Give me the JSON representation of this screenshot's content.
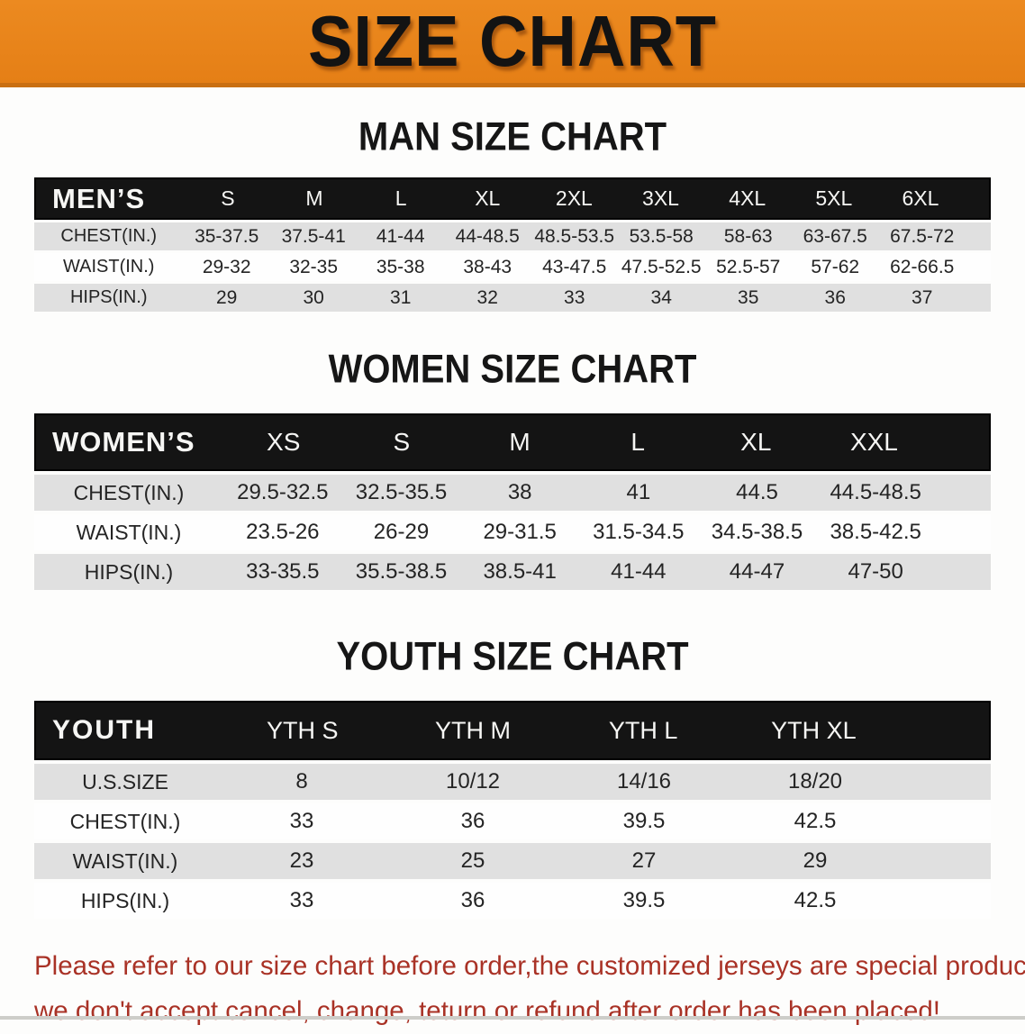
{
  "banner": {
    "title": "SIZE CHART",
    "background": "#E8831D",
    "border": "#C96F12"
  },
  "men": {
    "heading": "MAN SIZE CHART",
    "header": {
      "label": "MEN’S",
      "sizes": [
        "S",
        "M",
        "L",
        "XL",
        "2XL",
        "3XL",
        "4XL",
        "5XL",
        "6XL"
      ]
    },
    "rows": [
      {
        "label": "CHEST(IN.)",
        "values": [
          "35-37.5",
          "37.5-41",
          "41-44",
          "44-48.5",
          "48.5-53.5",
          "53.5-58",
          "58-63",
          "63-67.5",
          "67.5-72"
        ]
      },
      {
        "label": "WAIST(IN.)",
        "values": [
          "29-32",
          "32-35",
          "35-38",
          "38-43",
          "43-47.5",
          "47.5-52.5",
          "52.5-57",
          "57-62",
          "62-66.5"
        ]
      },
      {
        "label": "HIPS(IN.)",
        "values": [
          "29",
          "30",
          "31",
          "32",
          "33",
          "34",
          "35",
          "36",
          "37"
        ]
      }
    ]
  },
  "women": {
    "heading": "WOMEN SIZE CHART",
    "header": {
      "label": "WOMEN’S",
      "sizes": [
        "XS",
        "S",
        "M",
        "L",
        "XL",
        "XXL"
      ]
    },
    "rows": [
      {
        "label": "CHEST(IN.)",
        "values": [
          "29.5-32.5",
          "32.5-35.5",
          "38",
          "41",
          "44.5",
          "44.5-48.5"
        ]
      },
      {
        "label": "WAIST(IN.)",
        "values": [
          "23.5-26",
          "26-29",
          "29-31.5",
          "31.5-34.5",
          "34.5-38.5",
          "38.5-42.5"
        ]
      },
      {
        "label": "HIPS(IN.)",
        "values": [
          "33-35.5",
          "35.5-38.5",
          "38.5-41",
          "41-44",
          "44-47",
          "47-50"
        ]
      }
    ]
  },
  "youth": {
    "heading": "YOUTH SIZE CHART",
    "header": {
      "label": "YOUTH",
      "sizes": [
        "YTH S",
        "YTH M",
        "YTH L",
        "YTH XL"
      ]
    },
    "rows": [
      {
        "label": "U.S.SIZE",
        "values": [
          "8",
          "10/12",
          "14/16",
          "18/20"
        ]
      },
      {
        "label": "CHEST(IN.)",
        "values": [
          "33",
          "36",
          "39.5",
          "42.5"
        ]
      },
      {
        "label": "WAIST(IN.)",
        "values": [
          "23",
          "25",
          "27",
          "29"
        ]
      },
      {
        "label": "HIPS(IN.)",
        "values": [
          "33",
          "36",
          "39.5",
          "42.5"
        ]
      }
    ]
  },
  "footer": {
    "line1": "Please refer to our size chart before order,the customized jerseys are special products,",
    "line2": "we don't accept cancel, change, teturn or refund after order has been placed!",
    "color": "#A93226"
  }
}
